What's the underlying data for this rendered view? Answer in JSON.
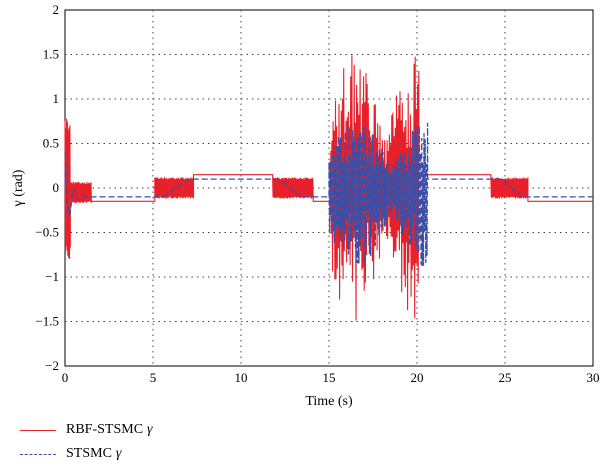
{
  "chart_data": {
    "type": "line",
    "xlabel": "Time (s)",
    "ylabel": "γ (rad)",
    "xlim": [
      0,
      30
    ],
    "ylim": [
      -2,
      2
    ],
    "xticks": [
      "0",
      "5",
      "10",
      "15",
      "20",
      "25",
      "30"
    ],
    "yticks": [
      "−2",
      "−1.5",
      "−1",
      "−0.5",
      "0",
      "0.5",
      "1",
      "1.5",
      "2"
    ],
    "grid": true,
    "legend_position": "bottom-left, below plot",
    "series": [
      {
        "name": "RBF-STSMC",
        "name_symbol": "γ",
        "color": "#e8202a",
        "style": "solid",
        "segments": [
          {
            "kind": "osc",
            "x0": 0.0,
            "x1": 0.3,
            "base": 0.0,
            "amp": 0.8
          },
          {
            "kind": "osc",
            "x0": 0.3,
            "x1": 1.5,
            "base": -0.05,
            "amp": 0.12
          },
          {
            "kind": "flat",
            "x0": 1.5,
            "x1": 5.1,
            "y": -0.15
          },
          {
            "kind": "osc",
            "x0": 5.1,
            "x1": 7.3,
            "base": 0.0,
            "amp": 0.12
          },
          {
            "kind": "flat",
            "x0": 7.3,
            "x1": 11.8,
            "y": 0.15
          },
          {
            "kind": "osc",
            "x0": 11.8,
            "x1": 14.1,
            "base": 0.0,
            "amp": 0.12
          },
          {
            "kind": "flat",
            "x0": 14.1,
            "x1": 15.1,
            "y": -0.15
          },
          {
            "kind": "chaos",
            "x0": 15.1,
            "x1": 20.1,
            "peak": 1.52,
            "trough": -1.52
          },
          {
            "kind": "flat",
            "x0": 20.1,
            "x1": 24.2,
            "y": 0.15
          },
          {
            "kind": "osc",
            "x0": 24.2,
            "x1": 26.3,
            "base": 0.0,
            "amp": 0.12
          },
          {
            "kind": "flat",
            "x0": 26.3,
            "x1": 30.0,
            "y": -0.15
          }
        ]
      },
      {
        "name": "STSMC",
        "name_symbol": "γ",
        "color": "#3a4fa8",
        "style": "dashed",
        "segments": [
          {
            "kind": "transient",
            "x0": 0.0,
            "x1": 1.2,
            "start": 0.4,
            "end": -0.1
          },
          {
            "kind": "flat",
            "x0": 1.2,
            "x1": 5.6,
            "y": -0.1
          },
          {
            "kind": "ramp",
            "x0": 5.6,
            "x1": 7.0,
            "y0": -0.1,
            "y1": 0.1
          },
          {
            "kind": "flat",
            "x0": 7.0,
            "x1": 12.2,
            "y": 0.1
          },
          {
            "kind": "ramp",
            "x0": 12.2,
            "x1": 13.4,
            "y0": 0.1,
            "y1": -0.1
          },
          {
            "kind": "flat",
            "x0": 13.4,
            "x1": 15.0,
            "y": -0.1
          },
          {
            "kind": "chaos",
            "x0": 15.0,
            "x1": 20.6,
            "peak": 0.75,
            "trough": -0.9
          },
          {
            "kind": "flat",
            "x0": 20.6,
            "x1": 24.8,
            "y": 0.1
          },
          {
            "kind": "ramp",
            "x0": 24.8,
            "x1": 26.0,
            "y0": 0.1,
            "y1": -0.1
          },
          {
            "kind": "flat",
            "x0": 26.0,
            "x1": 30.0,
            "y": -0.1
          }
        ]
      }
    ]
  }
}
